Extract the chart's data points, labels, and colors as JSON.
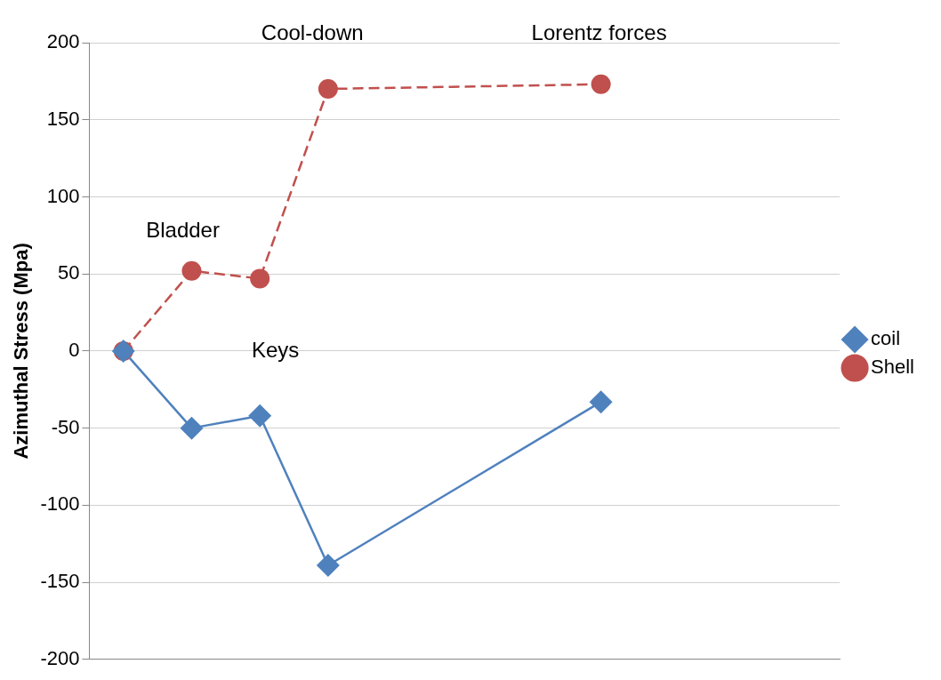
{
  "chart_data": {
    "type": "line",
    "ylabel": "Azimuthal Stress (Mpa)",
    "categories": [
      null,
      null,
      null,
      null,
      null,
      null,
      null,
      null,
      null,
      null,
      null
    ],
    "series": [
      {
        "name": "coil",
        "color": "#4f81bd",
        "marker": "diamond",
        "line_style": "solid",
        "values": [
          0,
          -50,
          -42,
          -139,
          null,
          null,
          null,
          -33,
          null,
          null,
          null
        ]
      },
      {
        "name": "Shell",
        "color": "#c0504d",
        "marker": "circle",
        "line_style": "dashed",
        "values": [
          0,
          52,
          47,
          170,
          null,
          null,
          null,
          173,
          null,
          null,
          null
        ]
      }
    ],
    "ylim": [
      -200,
      200
    ],
    "yticks": [
      -200,
      -150,
      -100,
      -50,
      0,
      50,
      100,
      150,
      200
    ],
    "grid": "y",
    "legend": "right",
    "annotations": [
      "Bladder",
      "Keys",
      "Cool-down",
      "Lorentz forces"
    ]
  }
}
